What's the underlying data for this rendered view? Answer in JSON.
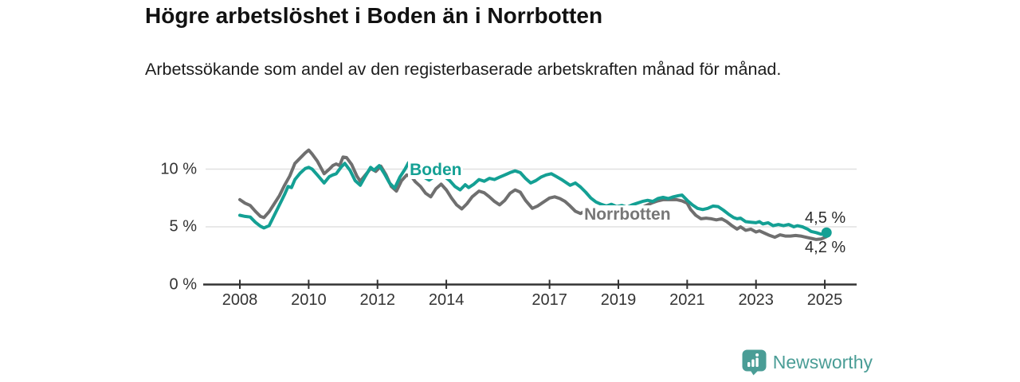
{
  "header": {
    "title": "Högre arbetslöshet i Boden än i Norrbotten",
    "subtitle": "Arbetssökande som andel av den registerbaserade arbetskraften månad för månad."
  },
  "footer": {
    "brand": "Newsworthy"
  },
  "colors": {
    "boden": "#14a094",
    "norrbotten": "#6f6f6f",
    "norrbotten_label": "#767676",
    "axis": "#333333",
    "gridline": "#e0e0e0",
    "logo_teal": "#4a9d96"
  },
  "chart_data": {
    "type": "line",
    "title": "Högre arbetslöshet i Boden än i Norrbotten",
    "subtitle": "Arbetssökande som andel av den registerbaserade arbetskraften månad för månad.",
    "ylabel": "",
    "xlabel": "",
    "grid": "horizontal",
    "y_axis": {
      "unit": "%",
      "range": [
        0,
        12.4
      ],
      "ticks": [
        {
          "label": "0 %",
          "value": 0
        },
        {
          "label": "5 %",
          "value": 5
        },
        {
          "label": "10 %",
          "value": 10
        }
      ]
    },
    "x_axis": {
      "range_years": [
        2008,
        2025.9
      ],
      "ticks": [
        {
          "label": "2008",
          "year": 2008
        },
        {
          "label": "2010",
          "year": 2010
        },
        {
          "label": "2012",
          "year": 2012
        },
        {
          "label": "2014",
          "year": 2014
        },
        {
          "label": "2017",
          "year": 2017
        },
        {
          "label": "2019",
          "year": 2019
        },
        {
          "label": "2021",
          "year": 2021
        },
        {
          "label": "2023",
          "year": 2023
        },
        {
          "label": "2025",
          "year": 2025
        }
      ]
    },
    "series": [
      {
        "name": "Norrbotten",
        "color": "#6f6f6f",
        "label": {
          "text": "Norrbotten",
          "year": 2017.96,
          "value": 6.86,
          "color": "#767676"
        },
        "end_dot": false,
        "points": [
          [
            2008.0,
            7.35
          ],
          [
            2008.15,
            7.05
          ],
          [
            2008.3,
            6.85
          ],
          [
            2008.45,
            6.35
          ],
          [
            2008.6,
            5.9
          ],
          [
            2008.7,
            5.8
          ],
          [
            2008.85,
            6.3
          ],
          [
            2009.0,
            7.0
          ],
          [
            2009.15,
            7.7
          ],
          [
            2009.3,
            8.6
          ],
          [
            2009.45,
            9.4
          ],
          [
            2009.6,
            10.5
          ],
          [
            2009.75,
            10.95
          ],
          [
            2009.9,
            11.4
          ],
          [
            2010.0,
            11.65
          ],
          [
            2010.1,
            11.3
          ],
          [
            2010.25,
            10.7
          ],
          [
            2010.45,
            9.6
          ],
          [
            2010.6,
            10.0
          ],
          [
            2010.7,
            10.3
          ],
          [
            2010.8,
            10.45
          ],
          [
            2010.9,
            10.3
          ],
          [
            2011.0,
            11.05
          ],
          [
            2011.1,
            11.0
          ],
          [
            2011.25,
            10.4
          ],
          [
            2011.4,
            9.4
          ],
          [
            2011.5,
            8.95
          ],
          [
            2011.65,
            9.5
          ],
          [
            2011.8,
            10.05
          ],
          [
            2011.95,
            9.8
          ],
          [
            2012.1,
            10.25
          ],
          [
            2012.25,
            9.5
          ],
          [
            2012.4,
            8.5
          ],
          [
            2012.55,
            8.1
          ],
          [
            2012.7,
            9.0
          ],
          [
            2012.85,
            9.5
          ],
          [
            2013.0,
            9.3
          ],
          [
            2013.1,
            8.9
          ],
          [
            2013.25,
            8.5
          ],
          [
            2013.4,
            7.9
          ],
          [
            2013.55,
            7.6
          ],
          [
            2013.7,
            8.3
          ],
          [
            2013.85,
            8.7
          ],
          [
            2014.0,
            8.2
          ],
          [
            2014.15,
            7.5
          ],
          [
            2014.3,
            6.9
          ],
          [
            2014.45,
            6.55
          ],
          [
            2014.6,
            7.0
          ],
          [
            2014.75,
            7.6
          ],
          [
            2014.95,
            8.1
          ],
          [
            2015.1,
            7.95
          ],
          [
            2015.25,
            7.6
          ],
          [
            2015.4,
            7.2
          ],
          [
            2015.55,
            6.9
          ],
          [
            2015.7,
            7.3
          ],
          [
            2015.85,
            7.9
          ],
          [
            2016.0,
            8.2
          ],
          [
            2016.15,
            8.0
          ],
          [
            2016.3,
            7.3
          ],
          [
            2016.5,
            6.6
          ],
          [
            2016.65,
            6.8
          ],
          [
            2016.8,
            7.1
          ],
          [
            2017.0,
            7.5
          ],
          [
            2017.15,
            7.6
          ],
          [
            2017.3,
            7.45
          ],
          [
            2017.45,
            7.2
          ],
          [
            2017.6,
            6.8
          ],
          [
            2017.75,
            6.35
          ],
          [
            2017.9,
            6.15
          ],
          [
            2018.05,
            6.4
          ],
          [
            2018.2,
            6.55
          ],
          [
            2018.35,
            6.45
          ],
          [
            2018.5,
            6.3
          ],
          [
            2018.65,
            6.2
          ],
          [
            2018.8,
            6.3
          ],
          [
            2018.95,
            6.2
          ],
          [
            2019.1,
            6.25
          ],
          [
            2019.25,
            6.2
          ],
          [
            2019.4,
            6.3
          ],
          [
            2019.55,
            6.5
          ],
          [
            2019.7,
            6.7
          ],
          [
            2019.85,
            6.9
          ],
          [
            2020.0,
            7.1
          ],
          [
            2020.15,
            7.25
          ],
          [
            2020.3,
            7.35
          ],
          [
            2020.5,
            7.35
          ],
          [
            2020.7,
            7.35
          ],
          [
            2020.85,
            7.25
          ],
          [
            2021.0,
            7.05
          ],
          [
            2021.1,
            6.5
          ],
          [
            2021.25,
            6.0
          ],
          [
            2021.4,
            5.7
          ],
          [
            2021.55,
            5.75
          ],
          [
            2021.7,
            5.7
          ],
          [
            2021.85,
            5.6
          ],
          [
            2022.0,
            5.7
          ],
          [
            2022.15,
            5.45
          ],
          [
            2022.3,
            5.1
          ],
          [
            2022.45,
            4.8
          ],
          [
            2022.55,
            5.0
          ],
          [
            2022.7,
            4.7
          ],
          [
            2022.85,
            4.8
          ],
          [
            2023.0,
            4.55
          ],
          [
            2023.1,
            4.65
          ],
          [
            2023.25,
            4.45
          ],
          [
            2023.4,
            4.25
          ],
          [
            2023.55,
            4.1
          ],
          [
            2023.7,
            4.3
          ],
          [
            2023.85,
            4.2
          ],
          [
            2024.0,
            4.2
          ],
          [
            2024.15,
            4.25
          ],
          [
            2024.3,
            4.2
          ],
          [
            2024.45,
            4.1
          ],
          [
            2024.6,
            4.0
          ],
          [
            2024.75,
            3.9
          ],
          [
            2024.9,
            3.95
          ],
          [
            2025.05,
            4.15
          ]
        ]
      },
      {
        "name": "Boden",
        "color": "#14a094",
        "label": {
          "text": "Boden",
          "year": 2012.89,
          "value": 10.72,
          "color": "#14a094"
        },
        "end_dot": true,
        "points": [
          [
            2008.0,
            6.0
          ],
          [
            2008.15,
            5.9
          ],
          [
            2008.3,
            5.85
          ],
          [
            2008.45,
            5.4
          ],
          [
            2008.6,
            5.05
          ],
          [
            2008.7,
            4.9
          ],
          [
            2008.85,
            5.1
          ],
          [
            2009.0,
            6.0
          ],
          [
            2009.15,
            6.9
          ],
          [
            2009.3,
            7.8
          ],
          [
            2009.4,
            8.5
          ],
          [
            2009.5,
            8.4
          ],
          [
            2009.6,
            9.1
          ],
          [
            2009.75,
            9.65
          ],
          [
            2009.9,
            10.05
          ],
          [
            2010.0,
            10.15
          ],
          [
            2010.1,
            10.0
          ],
          [
            2010.25,
            9.5
          ],
          [
            2010.45,
            8.8
          ],
          [
            2010.6,
            9.35
          ],
          [
            2010.7,
            9.5
          ],
          [
            2010.8,
            9.6
          ],
          [
            2010.95,
            10.2
          ],
          [
            2011.05,
            10.5
          ],
          [
            2011.2,
            9.9
          ],
          [
            2011.35,
            9.0
          ],
          [
            2011.5,
            8.6
          ],
          [
            2011.65,
            9.4
          ],
          [
            2011.8,
            10.15
          ],
          [
            2011.9,
            9.9
          ],
          [
            2012.05,
            10.3
          ],
          [
            2012.2,
            9.6
          ],
          [
            2012.35,
            8.8
          ],
          [
            2012.5,
            8.35
          ],
          [
            2012.65,
            9.3
          ],
          [
            2012.8,
            10.0
          ],
          [
            2012.9,
            10.55
          ],
          [
            2013.05,
            10.1
          ],
          [
            2013.2,
            9.7
          ],
          [
            2013.35,
            9.3
          ],
          [
            2013.5,
            9.05
          ],
          [
            2013.65,
            9.35
          ],
          [
            2013.8,
            9.6
          ],
          [
            2013.95,
            9.35
          ],
          [
            2014.1,
            9.0
          ],
          [
            2014.25,
            8.5
          ],
          [
            2014.4,
            8.2
          ],
          [
            2014.55,
            8.65
          ],
          [
            2014.65,
            8.4
          ],
          [
            2014.8,
            8.7
          ],
          [
            2014.95,
            9.1
          ],
          [
            2015.1,
            8.95
          ],
          [
            2015.25,
            9.2
          ],
          [
            2015.4,
            9.1
          ],
          [
            2015.55,
            9.3
          ],
          [
            2015.7,
            9.5
          ],
          [
            2015.85,
            9.7
          ],
          [
            2016.0,
            9.85
          ],
          [
            2016.15,
            9.7
          ],
          [
            2016.3,
            9.2
          ],
          [
            2016.45,
            8.8
          ],
          [
            2016.6,
            9.0
          ],
          [
            2016.75,
            9.3
          ],
          [
            2016.9,
            9.5
          ],
          [
            2017.05,
            9.6
          ],
          [
            2017.2,
            9.35
          ],
          [
            2017.35,
            9.1
          ],
          [
            2017.5,
            8.8
          ],
          [
            2017.6,
            8.6
          ],
          [
            2017.75,
            8.8
          ],
          [
            2017.9,
            8.45
          ],
          [
            2018.05,
            8.0
          ],
          [
            2018.2,
            7.5
          ],
          [
            2018.35,
            7.15
          ],
          [
            2018.5,
            6.95
          ],
          [
            2018.65,
            6.8
          ],
          [
            2018.8,
            6.95
          ],
          [
            2018.95,
            6.75
          ],
          [
            2019.1,
            6.85
          ],
          [
            2019.25,
            6.7
          ],
          [
            2019.4,
            6.9
          ],
          [
            2019.55,
            7.05
          ],
          [
            2019.7,
            7.2
          ],
          [
            2019.85,
            7.3
          ],
          [
            2020.0,
            7.2
          ],
          [
            2020.15,
            7.45
          ],
          [
            2020.3,
            7.55
          ],
          [
            2020.45,
            7.45
          ],
          [
            2020.6,
            7.6
          ],
          [
            2020.75,
            7.7
          ],
          [
            2020.85,
            7.75
          ],
          [
            2021.0,
            7.3
          ],
          [
            2021.15,
            6.9
          ],
          [
            2021.3,
            6.6
          ],
          [
            2021.45,
            6.5
          ],
          [
            2021.6,
            6.6
          ],
          [
            2021.75,
            6.8
          ],
          [
            2021.9,
            6.75
          ],
          [
            2022.05,
            6.45
          ],
          [
            2022.2,
            6.1
          ],
          [
            2022.35,
            5.8
          ],
          [
            2022.45,
            5.7
          ],
          [
            2022.55,
            5.75
          ],
          [
            2022.7,
            5.45
          ],
          [
            2022.85,
            5.4
          ],
          [
            2023.0,
            5.35
          ],
          [
            2023.1,
            5.45
          ],
          [
            2023.2,
            5.25
          ],
          [
            2023.35,
            5.35
          ],
          [
            2023.5,
            5.1
          ],
          [
            2023.65,
            5.2
          ],
          [
            2023.8,
            5.1
          ],
          [
            2023.95,
            5.2
          ],
          [
            2024.1,
            5.0
          ],
          [
            2024.2,
            5.1
          ],
          [
            2024.35,
            5.0
          ],
          [
            2024.5,
            4.8
          ],
          [
            2024.6,
            4.6
          ],
          [
            2024.75,
            4.5
          ],
          [
            2024.9,
            4.35
          ],
          [
            2025.05,
            4.5
          ]
        ]
      }
    ],
    "annotations": {
      "end_labels": [
        {
          "text": "4,5 %",
          "series": "Boden",
          "year": 2024.42,
          "value": 6.5
        },
        {
          "text": "4,2 %",
          "series": "Norrbotten",
          "year": 2024.42,
          "value": 3.95
        }
      ]
    }
  }
}
